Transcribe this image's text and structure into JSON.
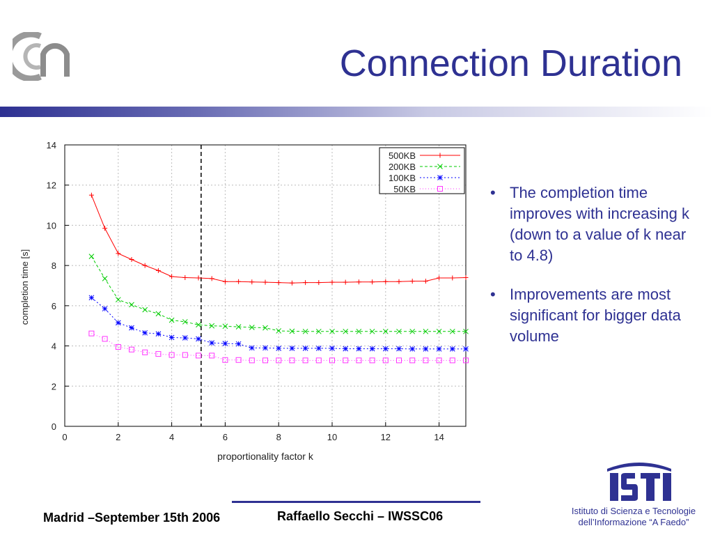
{
  "slide": {
    "title": "Connection Duration",
    "bullets": [
      "The completion time improves with increasing k (down to a value of k near to 4.8)",
      "Improvements are most significant for bigger data volume"
    ],
    "bullet_glyph": "•",
    "footer_left": "Madrid –September 15th 2006",
    "footer_center": "Raffaello Secchi – IWSSC06",
    "institute_line1": "Istituto di Scienza e Tecnologie",
    "institute_line2": "dell’Informazione “A Faedo”",
    "logo_left": "cnr-logo",
    "logo_right": "isti-logo",
    "accent_color": "#2e3192"
  },
  "chart_data": {
    "type": "line",
    "xlabel": "proportionality factor k",
    "ylabel": "completion time [s]",
    "xlim": [
      0,
      15
    ],
    "ylim": [
      0,
      14
    ],
    "xticks": [
      0,
      2,
      4,
      6,
      8,
      10,
      12,
      14
    ],
    "yticks": [
      0,
      2,
      4,
      6,
      8,
      10,
      12,
      14
    ],
    "grid": true,
    "legend_position": "top-right",
    "vertical_line": 5.1,
    "x": [
      1,
      1.5,
      2,
      2.5,
      3,
      3.5,
      4,
      4.5,
      5,
      5.5,
      6,
      6.5,
      7,
      7.5,
      8,
      8.5,
      9,
      9.5,
      10,
      10.5,
      11,
      11.5,
      12,
      12.5,
      13,
      13.5,
      14,
      14.5,
      15
    ],
    "series": [
      {
        "name": "500KB",
        "color": "#ff0000",
        "marker": "plus",
        "values": [
          11.5,
          9.85,
          8.6,
          8.3,
          8.0,
          7.75,
          7.45,
          7.4,
          7.38,
          7.35,
          7.2,
          7.2,
          7.18,
          7.17,
          7.15,
          7.13,
          7.15,
          7.15,
          7.17,
          7.17,
          7.18,
          7.18,
          7.2,
          7.2,
          7.22,
          7.22,
          7.38,
          7.38,
          7.4
        ]
      },
      {
        "name": "200KB",
        "color": "#00cc00",
        "marker": "cross",
        "values": [
          8.45,
          7.35,
          6.3,
          6.05,
          5.8,
          5.6,
          5.28,
          5.2,
          5.05,
          5.0,
          4.98,
          4.95,
          4.92,
          4.9,
          4.75,
          4.73,
          4.72,
          4.72,
          4.72,
          4.72,
          4.72,
          4.72,
          4.72,
          4.72,
          4.72,
          4.72,
          4.72,
          4.72,
          4.72
        ]
      },
      {
        "name": "100KB",
        "color": "#0000ff",
        "marker": "star",
        "values": [
          6.4,
          5.85,
          5.15,
          4.9,
          4.65,
          4.6,
          4.42,
          4.4,
          4.35,
          4.15,
          4.12,
          4.1,
          3.9,
          3.9,
          3.88,
          3.88,
          3.88,
          3.88,
          3.88,
          3.86,
          3.86,
          3.86,
          3.86,
          3.86,
          3.85,
          3.85,
          3.85,
          3.85,
          3.85
        ]
      },
      {
        "name": "50KB",
        "color": "#ff33ff",
        "marker": "square",
        "values": [
          4.62,
          4.35,
          3.95,
          3.82,
          3.68,
          3.6,
          3.55,
          3.55,
          3.52,
          3.52,
          3.3,
          3.3,
          3.28,
          3.28,
          3.28,
          3.28,
          3.28,
          3.28,
          3.28,
          3.28,
          3.28,
          3.28,
          3.28,
          3.28,
          3.28,
          3.28,
          3.28,
          3.28,
          3.28
        ]
      }
    ]
  }
}
